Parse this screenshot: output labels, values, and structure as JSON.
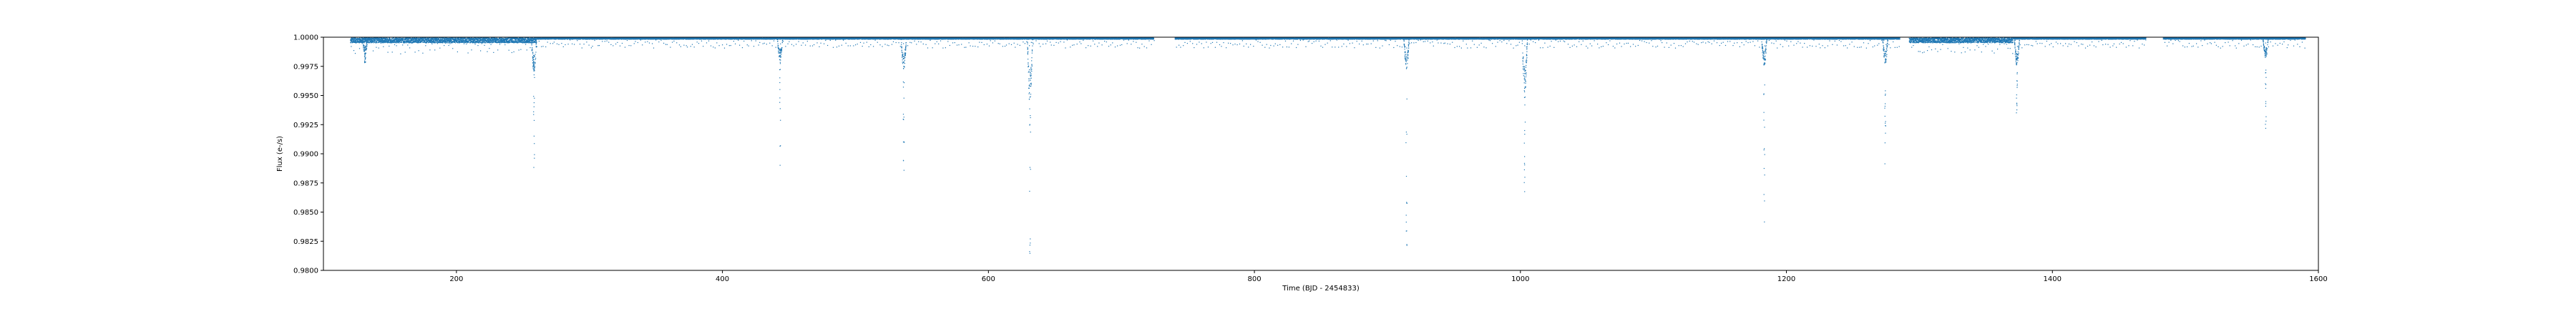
{
  "chart_data": {
    "type": "scatter",
    "title": "",
    "xlabel": "Time (BJD - 2454833)",
    "ylabel": "Flux (e-/s)",
    "xlim": [
      100,
      1600
    ],
    "ylim": [
      0.98,
      1.0
    ],
    "x_ticks": [
      200,
      400,
      600,
      800,
      1000,
      1200,
      1400,
      1600
    ],
    "y_ticks": [
      0.98,
      0.9825,
      0.985,
      0.9875,
      0.99,
      0.9925,
      0.995,
      0.9975,
      1.0
    ],
    "x_tick_labels": [
      "200",
      "400",
      "600",
      "800",
      "1000",
      "1200",
      "1400",
      "1600"
    ],
    "y_tick_labels": [
      "0.9800",
      "0.9825",
      "0.9850",
      "0.9875",
      "0.9900",
      "0.9925",
      "0.9950",
      "0.9975",
      "1.0000"
    ],
    "grid": false,
    "marker_color": "#1f77b4",
    "data_range_x": [
      120,
      1590
    ],
    "gaps": [
      [
        724,
        740
      ],
      [
        1285,
        1292
      ],
      [
        1470,
        1483
      ]
    ],
    "transits": [
      {
        "x": 131,
        "depth_core": 0.0015,
        "depth_max": 0.0022
      },
      {
        "x": 258,
        "depth_core": 0.003,
        "depth_max": 0.012
      },
      {
        "x": 443,
        "depth_core": 0.002,
        "depth_max": 0.011
      },
      {
        "x": 536,
        "depth_core": 0.0028,
        "depth_max": 0.0125
      },
      {
        "x": 631,
        "depth_core": 0.0058,
        "depth_max": 0.0195
      },
      {
        "x": 914,
        "depth_core": 0.0028,
        "depth_max": 0.018
      },
      {
        "x": 1003,
        "depth_core": 0.0048,
        "depth_max": 0.0145
      },
      {
        "x": 1183,
        "depth_core": 0.0025,
        "depth_max": 0.016
      },
      {
        "x": 1274,
        "depth_core": 0.0023,
        "depth_max": 0.0112
      },
      {
        "x": 1373,
        "depth_core": 0.0025,
        "depth_max": 0.0065
      },
      {
        "x": 1560,
        "depth_core": 0.0018,
        "depth_max": 0.008
      }
    ],
    "noisy_segments": [
      [
        120,
        260
      ],
      [
        1292,
        1370
      ]
    ]
  }
}
